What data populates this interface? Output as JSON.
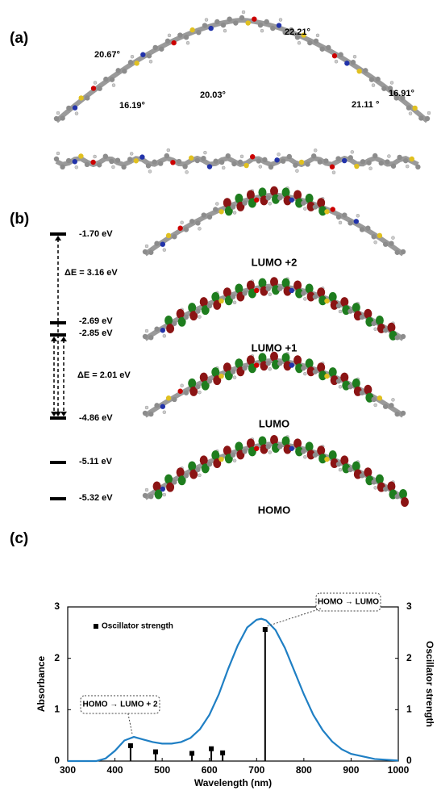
{
  "panel_a": {
    "label": "(a)",
    "angles": [
      "20.67°",
      "20.03°",
      "22.21°",
      "16.91°",
      "16.19°",
      "21.11 °"
    ]
  },
  "panel_b": {
    "label": "(b)",
    "levels": [
      "-1.70 eV",
      "-2.69 eV",
      "-2.85 eV",
      "-4.86 eV",
      "-5.11 eV",
      "-5.32 eV"
    ],
    "gaps": [
      "ΔE = 3.16 eV",
      "ΔE = 2.01 eV"
    ],
    "orbitals": [
      "LUMO +2",
      "LUMO +1",
      "LUMO",
      "HOMO"
    ]
  },
  "panel_c": {
    "label": "(c)"
  },
  "chart_data": {
    "type": "line",
    "xlabel": "Wavelength (nm)",
    "ylabel": "Absorbance",
    "y2label": "Oscillator strength",
    "xlim": [
      300,
      1000
    ],
    "xticks": [
      300,
      400,
      500,
      600,
      700,
      800,
      900,
      1000
    ],
    "ylim": [
      0,
      3
    ],
    "yticks": [
      0,
      1,
      2,
      3
    ],
    "y2lim": [
      0,
      3
    ],
    "y2ticks": [
      0,
      1,
      2,
      3
    ],
    "legend": "top-left",
    "series": [
      {
        "color": "#1f7fc4",
        "x": [
          300,
          360,
          380,
          400,
          420,
          440,
          460,
          480,
          500,
          520,
          540,
          560,
          580,
          600,
          620,
          640,
          660,
          680,
          700,
          710,
          720,
          740,
          760,
          780,
          800,
          820,
          840,
          860,
          880,
          900,
          950,
          1000
        ],
        "values": [
          0,
          0,
          0.05,
          0.2,
          0.4,
          0.47,
          0.42,
          0.37,
          0.34,
          0.34,
          0.37,
          0.45,
          0.62,
          0.9,
          1.3,
          1.8,
          2.25,
          2.6,
          2.75,
          2.77,
          2.74,
          2.55,
          2.2,
          1.75,
          1.3,
          0.9,
          0.6,
          0.38,
          0.23,
          0.14,
          0.04,
          0.01
        ]
      },
      {
        "name": "Oscillator strength",
        "color": "#000000",
        "axis": "y2",
        "x": [
          433,
          486,
          563,
          604,
          628,
          718
        ],
        "values": [
          0.3,
          0.18,
          0.15,
          0.24,
          0.16,
          2.56
        ]
      }
    ],
    "annotations": [
      "HOMO → LUMO",
      "HOMO → LUMO + 2"
    ]
  }
}
